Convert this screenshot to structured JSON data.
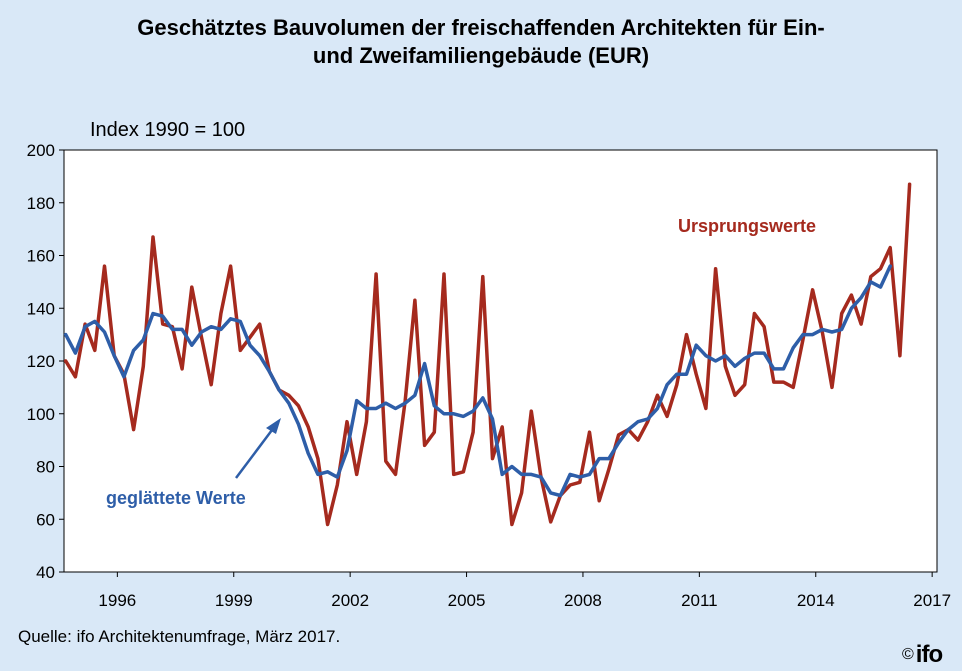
{
  "title_line1": "Geschätztes Bauvolumen der freischaffenden Architekten für Ein-",
  "title_line2": "und Zweifamiliengebäude (EUR)",
  "source": "Quelle: ifo Architektenumfrage, März 2017.",
  "logo": {
    "copyright": "©",
    "name": "ifo"
  },
  "chart_data": {
    "type": "line",
    "ylabel": "Index 1990 = 100",
    "ylim": [
      40,
      200
    ],
    "yticks": [
      40,
      60,
      80,
      100,
      120,
      140,
      160,
      180,
      200
    ],
    "xlim": [
      1994.625,
      2017.125
    ],
    "xticks": [
      1996,
      1999,
      2002,
      2005,
      2008,
      2011,
      2014,
      2017
    ],
    "grid": false,
    "colors": {
      "Ursprungswerte": "#a52a1e",
      "geglättete Werte": "#2e5ea8",
      "background": "#d9e8f7",
      "plot": "#ffffff"
    },
    "annotations": [
      {
        "text": "Ursprungswerte",
        "series": "Ursprungswerte"
      },
      {
        "text": "geglättete Werte",
        "series": "geglättete Werte",
        "arrow": true
      }
    ],
    "series": [
      {
        "name": "Ursprungswerte",
        "x": [
          1994.67,
          1994.92,
          1995.17,
          1995.42,
          1995.67,
          1995.92,
          1996.17,
          1996.42,
          1996.67,
          1996.92,
          1997.17,
          1997.42,
          1997.67,
          1997.92,
          1998.17,
          1998.42,
          1998.67,
          1998.92,
          1999.17,
          1999.42,
          1999.67,
          1999.92,
          2000.17,
          2000.42,
          2000.67,
          2000.92,
          2001.17,
          2001.42,
          2001.67,
          2001.92,
          2002.17,
          2002.42,
          2002.67,
          2002.92,
          2003.17,
          2003.42,
          2003.67,
          2003.92,
          2004.17,
          2004.42,
          2004.67,
          2004.92,
          2005.17,
          2005.42,
          2005.67,
          2005.92,
          2006.17,
          2006.42,
          2006.67,
          2006.92,
          2007.17,
          2007.42,
          2007.67,
          2007.92,
          2008.17,
          2008.42,
          2008.67,
          2008.92,
          2009.17,
          2009.42,
          2009.67,
          2009.92,
          2010.17,
          2010.42,
          2010.67,
          2010.92,
          2011.17,
          2011.42,
          2011.67,
          2011.92,
          2012.17,
          2012.42,
          2012.67,
          2012.92,
          2013.17,
          2013.42,
          2013.67,
          2013.92,
          2014.17,
          2014.42,
          2014.67,
          2014.92,
          2015.17,
          2015.42,
          2015.67,
          2015.92,
          2016.17,
          2016.42
        ],
        "values": [
          120,
          114,
          134,
          124,
          156,
          122,
          115,
          94,
          118,
          167,
          134,
          133,
          117,
          148,
          129,
          111,
          138,
          156,
          124,
          129,
          134,
          116,
          109,
          107,
          103,
          95,
          83,
          58,
          73,
          97,
          77,
          97,
          153,
          82,
          77,
          105,
          143,
          88,
          93,
          153,
          77,
          78,
          93,
          152,
          83,
          95,
          58,
          70,
          101,
          76,
          59,
          69,
          73,
          74,
          93,
          67,
          79,
          92,
          94,
          90,
          97,
          107,
          99,
          111,
          130,
          115,
          102,
          155,
          118,
          107,
          111,
          138,
          133,
          112,
          112,
          110,
          128,
          147,
          131,
          110,
          138,
          145,
          134,
          152,
          155,
          163,
          122,
          187
        ]
      },
      {
        "name": "geglättete Werte",
        "x": [
          1994.67,
          1994.92,
          1995.17,
          1995.42,
          1995.67,
          1995.92,
          1996.17,
          1996.42,
          1996.67,
          1996.92,
          1997.17,
          1997.42,
          1997.67,
          1997.92,
          1998.17,
          1998.42,
          1998.67,
          1998.92,
          1999.17,
          1999.42,
          1999.67,
          1999.92,
          2000.17,
          2000.42,
          2000.67,
          2000.92,
          2001.17,
          2001.42,
          2001.67,
          2001.92,
          2002.17,
          2002.42,
          2002.67,
          2002.92,
          2003.17,
          2003.42,
          2003.67,
          2003.92,
          2004.17,
          2004.42,
          2004.67,
          2004.92,
          2005.17,
          2005.42,
          2005.67,
          2005.92,
          2006.17,
          2006.42,
          2006.67,
          2006.92,
          2007.17,
          2007.42,
          2007.67,
          2007.92,
          2008.17,
          2008.42,
          2008.67,
          2008.92,
          2009.17,
          2009.42,
          2009.67,
          2009.92,
          2010.17,
          2010.42,
          2010.67,
          2010.92,
          2011.17,
          2011.42,
          2011.67,
          2011.92,
          2012.17,
          2012.42,
          2012.67,
          2012.92,
          2013.17,
          2013.42,
          2013.67,
          2013.92,
          2014.17,
          2014.42,
          2014.67,
          2014.92,
          2015.17,
          2015.42,
          2015.67,
          2015.92
        ],
        "values": [
          130,
          123,
          133,
          135,
          131,
          122,
          114,
          124,
          128,
          138,
          137,
          132,
          132,
          126,
          131,
          133,
          132,
          136,
          135,
          126,
          122,
          116,
          109,
          104,
          96,
          85,
          77,
          78,
          76,
          86,
          105,
          102,
          102,
          104,
          102,
          104,
          107,
          119,
          103,
          100,
          100,
          99,
          101,
          106,
          98,
          77,
          80,
          77,
          77,
          76,
          70,
          69,
          77,
          76,
          77,
          83,
          83,
          89,
          94,
          97,
          98,
          102,
          111,
          115,
          115,
          126,
          122,
          120,
          122,
          118,
          121,
          123,
          123,
          117,
          117,
          125,
          130,
          130,
          132,
          131,
          132,
          140,
          144,
          150,
          148,
          156
        ]
      }
    ]
  }
}
